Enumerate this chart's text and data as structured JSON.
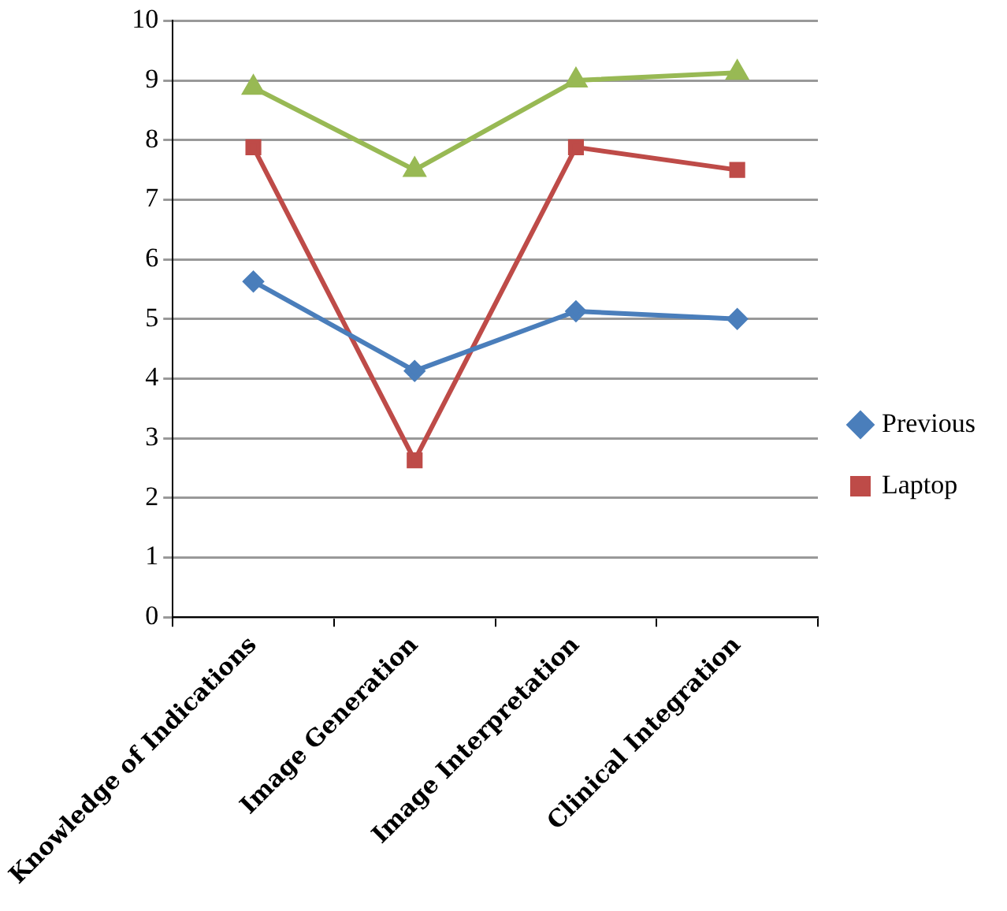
{
  "chart_data": {
    "type": "line",
    "categories": [
      "Knowledge of Indications",
      "Image Generation",
      "Image Interpretation",
      "Clinical Integration"
    ],
    "series": [
      {
        "name": "Previous",
        "color": "#4a7ebb",
        "marker": "diamond",
        "values": [
          5.63,
          4.13,
          5.13,
          5.0
        ]
      },
      {
        "name": "Laptop",
        "color": "#be4b48",
        "marker": "square",
        "values": [
          7.88,
          2.63,
          7.88,
          7.5
        ]
      },
      {
        "color": "#98b954",
        "marker": "triangle",
        "values": [
          8.88,
          7.5,
          9.0,
          9.13
        ]
      }
    ],
    "ylim": [
      0,
      10
    ],
    "yticks": [
      0,
      1,
      2,
      3,
      4,
      5,
      6,
      7,
      8,
      9,
      10
    ],
    "grid": "y",
    "legend": "right"
  }
}
